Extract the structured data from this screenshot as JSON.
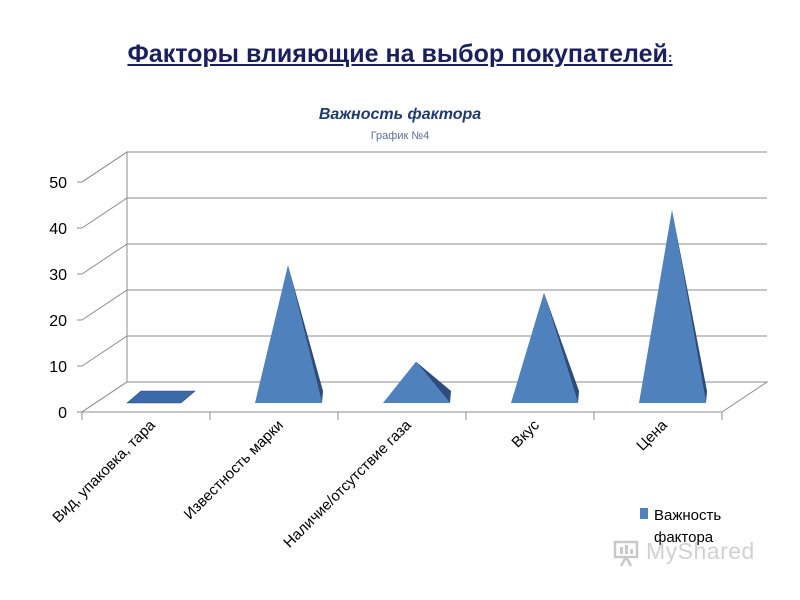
{
  "slide": {
    "title": "Факторы влияющие на выбор покупателей",
    "title_suffix": ":"
  },
  "chart_data": {
    "type": "bar",
    "bar_shape": "3d-pyramid",
    "title": "Важность фактора",
    "subtitle": "График №4",
    "categories": [
      "Вид, упаковка, тара",
      "Известность марки",
      "Наличие/отсутствие газа",
      "Вкус",
      "Цена"
    ],
    "series": [
      {
        "name": "Важность фактора",
        "values": [
          0,
          30,
          9,
          24,
          42
        ],
        "color": "#4f81bd"
      }
    ],
    "yticks": [
      0,
      10,
      20,
      30,
      40,
      50
    ],
    "ylim": [
      0,
      50
    ],
    "grid": true,
    "legend_position": "right"
  },
  "watermark": {
    "text": "MyShared"
  }
}
